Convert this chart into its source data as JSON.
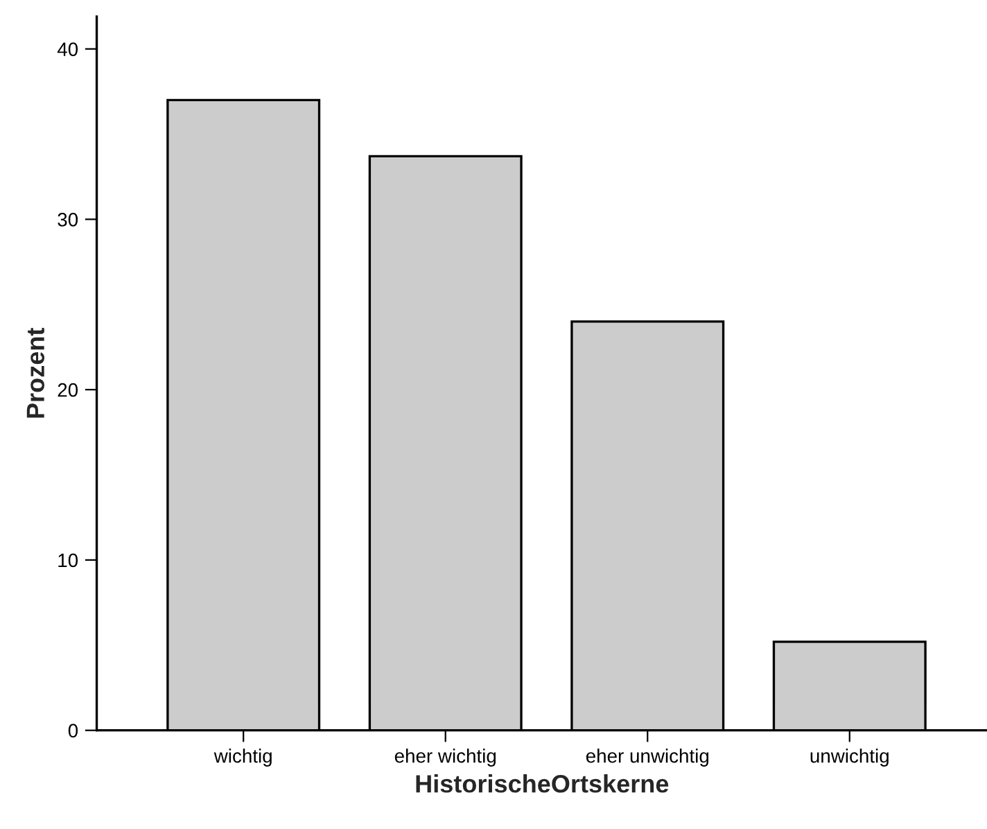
{
  "chart_data": {
    "type": "bar",
    "xlabel": "HistorischeOrtskerne",
    "ylabel": "Prozent",
    "categories": [
      "wichtig",
      "eher wichtig",
      "eher unwichtig",
      "unwichtig"
    ],
    "values": [
      37.0,
      33.7,
      24.0,
      5.2
    ],
    "color": "#cccccc",
    "ylim": [
      0,
      41.9
    ],
    "yticks": [
      0,
      10,
      20,
      30,
      40
    ],
    "grid": false,
    "legend": false
  }
}
